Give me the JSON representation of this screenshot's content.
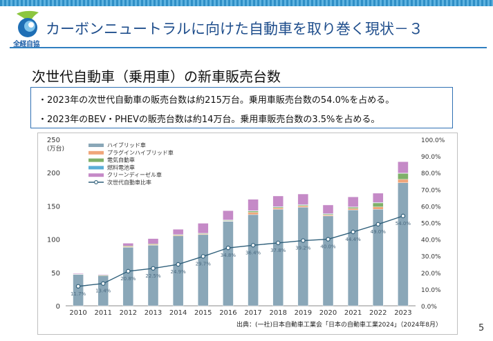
{
  "header": {
    "logo_text": "全経自協",
    "title": "カーボンニュートラルに向けた自動車を取り巻く現状－３"
  },
  "subtitle": "次世代自動車（乗用車）の新車販売台数",
  "bullets": [
    "・2023年の次世代自動車の販売台数は約215万台。乗用車販売台数の54.0%を占める。",
    "・2023年のBEV・PHEVの販売台数は約14万台。乗用車販売台数の3.5%を占める。"
  ],
  "page_number": "5",
  "colors": {
    "hybrid": "#8aa7b8",
    "phev": "#f0a67a",
    "bev": "#7fb069",
    "fcv": "#5aaed6",
    "diesel": "#c58ac7",
    "ratio_line": "#2f5f7a",
    "accent": "#1f4e8c"
  },
  "chart_data": {
    "type": "bar",
    "stacked": true,
    "y_unit_label": "(万台)",
    "categories": [
      "2010",
      "2011",
      "2012",
      "2013",
      "2014",
      "2015",
      "2016",
      "2017",
      "2018",
      "2019",
      "2020",
      "2021",
      "2022",
      "2023"
    ],
    "ylim": [
      0,
      250
    ],
    "yticks": [
      0,
      50,
      100,
      150,
      200,
      250
    ],
    "y2lim": [
      0,
      100
    ],
    "y2ticks": [
      "0.0%",
      "10.0%",
      "20.0%",
      "30.0%",
      "40.0%",
      "50.0%",
      "60.0%",
      "70.0%",
      "80.0%",
      "90.0%",
      "100.0%"
    ],
    "grid": false,
    "legend_position": "top-left",
    "series": [
      {
        "name": "ハイブリッド車",
        "key": "hybrid",
        "values": [
          47,
          45,
          88,
          91,
          105,
          107,
          127,
          137,
          145,
          148,
          135,
          144,
          145,
          185
        ]
      },
      {
        "name": "プラグインハイブリッド車",
        "key": "phev",
        "values": [
          0,
          0,
          1,
          1,
          1,
          1,
          0.5,
          3.5,
          2,
          2,
          1.5,
          2.2,
          3.7,
          5
        ]
      },
      {
        "name": "電気自動車",
        "key": "bev",
        "values": [
          0.5,
          1,
          1,
          1,
          1,
          1,
          1,
          2,
          1.5,
          1.5,
          1.5,
          2,
          6,
          9
        ]
      },
      {
        "name": "燃料電池車",
        "key": "fcv",
        "values": [
          0,
          0,
          0,
          0,
          0,
          0,
          0.5,
          0.5,
          0.5,
          0.5,
          0.5,
          0.5,
          0.5,
          0.5
        ]
      },
      {
        "name": "クリーンディーゼル車",
        "key": "diesel",
        "values": [
          1,
          1,
          4,
          8,
          8,
          15,
          14,
          17,
          16,
          16,
          13,
          15,
          14,
          17
        ]
      }
    ],
    "ratio_series": {
      "name": "次世代自動車比率",
      "values": [
        11.7,
        13.4,
        20.8,
        22.5,
        24.9,
        29.7,
        34.8,
        36.4,
        37.8,
        39.2,
        40.0,
        44.4,
        49.0,
        54.0
      ],
      "labels": [
        "11.7%",
        "13.4%",
        "20.8%",
        "22.5%",
        "24.9%",
        "29.7%",
        "34.8%",
        "36.4%",
        "37.8%",
        "39.2%",
        "40.0%",
        "44.4%",
        "49.0%",
        "54.0%"
      ]
    },
    "source": "出典：(一社)日本自動車工業会「日本の自動車工業2024」（2024年8月）"
  }
}
